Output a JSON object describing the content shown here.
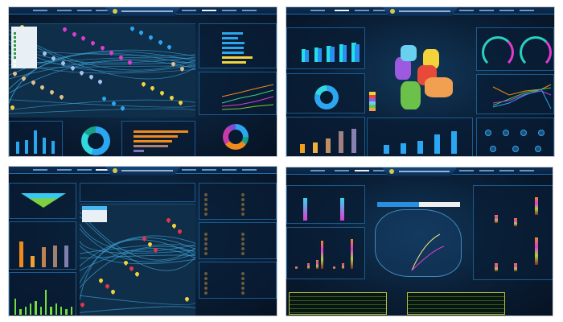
{
  "colors": {
    "accent": "#2aa7f0",
    "yellow": "#f2d33b",
    "orange": "#f08a1c",
    "magenta": "#e03bd0",
    "green": "#7ec842",
    "cyan": "#32d8e0",
    "red": "#e8344a"
  },
  "panels": [
    {
      "id": "map-dashboard",
      "active_tab": 5,
      "right_bars": [
        0.55,
        0.42,
        0.58,
        0.56,
        0.57,
        0.8,
        0.62
      ],
      "bottom_bars": [
        0.45,
        0.5,
        0.85,
        0.6,
        0.48
      ],
      "hbars": [
        0.95,
        0.76,
        0.67,
        0.6,
        0.18
      ],
      "donut": [
        "#2aa7f0",
        "#32d8e0",
        "#17a08a"
      ],
      "pie": [
        "#2aa7f0",
        "#17a08a",
        "#f08a1c",
        "#c63ba8",
        "#7a4fd0"
      ]
    },
    {
      "id": "province-dashboard",
      "active_tab": 1,
      "bars": [
        0.5,
        0.56,
        0.62,
        0.7,
        0.75
      ],
      "bars2": [
        0.35,
        0.42,
        0.55,
        0.85,
        0.95
      ],
      "bars3": [
        0.35,
        0.42,
        0.5,
        0.75,
        0.88
      ],
      "region_colors": [
        "#f2d33b",
        "#e84a3a",
        "#9b5ae0",
        "#6ad0f0",
        "#6cc14a",
        "#f0a050"
      ],
      "gauges": 2,
      "circles": 7
    },
    {
      "id": "route-dashboard",
      "active_tab": 3,
      "bars": [
        0.9,
        0.4,
        0.7,
        0.75,
        0.75
      ],
      "bar_colors": [
        "#f08a1c",
        "#f0a030",
        "#c08050",
        "#a08070",
        "#8080b0"
      ],
      "green_bars": [
        0.6,
        0.2,
        0.3,
        0.4,
        0.5,
        0.3,
        0.9,
        0.3,
        0.4,
        0.3,
        0.2,
        0.3
      ]
    },
    {
      "id": "china-dashboard",
      "active_tab": 2,
      "stack_colors": [
        "#f08a1c",
        "#e03bd0",
        "#b0d040",
        "#8a2a2a"
      ],
      "table_rows": 5,
      "table_cols": 14
    }
  ]
}
